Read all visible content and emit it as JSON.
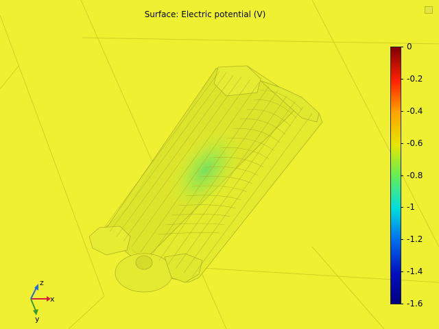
{
  "plot": {
    "title": "Surface: Electric potential (V)"
  },
  "colorbar": {
    "labels": [
      "0",
      "-0.2",
      "-0.4",
      "-0.6",
      "-0.8",
      "-1",
      "-1.2",
      "-1.4",
      "-1.6"
    ],
    "colors": [
      "#7f0000",
      "#ff2000",
      "#ffa000",
      "#e6e600",
      "#66ee55",
      "#00dde0",
      "#0070f0",
      "#0010c0",
      "#000080"
    ]
  },
  "axes": {
    "x_label": "x",
    "y_label": "y",
    "z_label": "z",
    "x_color": "#d81b3c",
    "y_color": "#3a9a2a",
    "z_color": "#2a6ad8"
  },
  "colors": {
    "background": "#f0f032",
    "surface": "#e0e830",
    "highlight": "#7ee85a",
    "edge": "#b0b020"
  }
}
